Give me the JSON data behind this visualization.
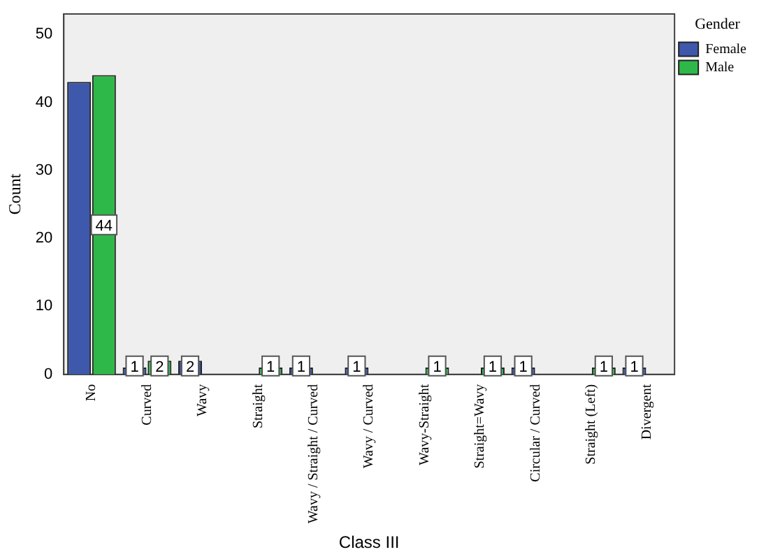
{
  "chart_data": {
    "type": "bar",
    "xlabel": "Class III",
    "ylabel": "Count",
    "legend_title": "Gender",
    "legend": "top right",
    "grid": false,
    "categories": [
      "No",
      "Curved",
      "Wavy",
      "Straight",
      "Wavy / Straight / Curved",
      "Wavy / Curved",
      "Wavy-Straight",
      "Straight=Wavy",
      "Circular / Curved",
      "Straight (Left)",
      "Divergent"
    ],
    "series": [
      {
        "name": "Female",
        "color": "#3e58ac",
        "values": [
          43,
          1,
          2,
          0,
          1,
          1,
          0,
          0,
          1,
          0,
          1
        ],
        "value_labels": [
          null,
          "1",
          "2",
          null,
          "1",
          "1",
          null,
          null,
          "1",
          null,
          "1"
        ]
      },
      {
        "name": "Male",
        "color": "#2fb84a",
        "values": [
          44,
          2,
          0,
          1,
          0,
          0,
          1,
          1,
          0,
          1,
          0
        ],
        "value_labels": [
          "44",
          "2",
          null,
          "1",
          null,
          null,
          "1",
          "1",
          null,
          "1",
          null
        ]
      }
    ],
    "ylim": [
      0,
      53
    ],
    "yticks": [
      0,
      10,
      20,
      30,
      40,
      50
    ]
  }
}
